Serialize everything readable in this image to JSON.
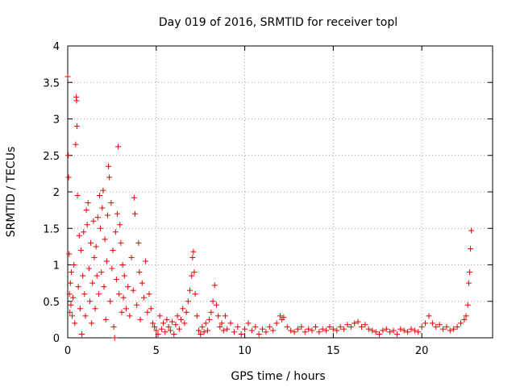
{
  "chart_data": {
    "type": "scatter",
    "title": "Day 019 of 2016, SRMTID for receiver topl",
    "xlabel": "GPS time / hours",
    "ylabel": "SRMTID / TECUs",
    "xlim": [
      0,
      24
    ],
    "ylim": [
      0,
      4
    ],
    "x_ticks": [
      0,
      5,
      10,
      15,
      20
    ],
    "y_ticks": [
      0,
      0.5,
      1,
      1.5,
      2,
      2.5,
      3,
      3.5,
      4
    ],
    "x_tick_labels": [
      "0",
      "5",
      "10",
      "15",
      "20"
    ],
    "y_tick_labels": [
      "0",
      "0.5",
      "1",
      "1.5",
      "2",
      "2.5",
      "3",
      "3.5",
      "4"
    ],
    "grid": true,
    "marker": "+",
    "color": "#e00000",
    "series": [
      {
        "name": "SRMTID",
        "points": [
          [
            0.0,
            3.58
          ],
          [
            0.03,
            2.5
          ],
          [
            0.05,
            2.2
          ],
          [
            0.08,
            1.15
          ],
          [
            0.1,
            0.6
          ],
          [
            0.12,
            0.35
          ],
          [
            0.15,
            0.75
          ],
          [
            0.18,
            0.45
          ],
          [
            0.2,
            0.9
          ],
          [
            0.25,
            0.3
          ],
          [
            0.3,
            0.55
          ],
          [
            0.35,
            1.0
          ],
          [
            0.4,
            0.2
          ],
          [
            0.45,
            2.65
          ],
          [
            0.48,
            3.3
          ],
          [
            0.5,
            3.25
          ],
          [
            0.52,
            2.9
          ],
          [
            0.55,
            1.95
          ],
          [
            0.6,
            0.7
          ],
          [
            0.65,
            1.4
          ],
          [
            0.7,
            0.4
          ],
          [
            0.75,
            1.2
          ],
          [
            0.8,
            0.05
          ],
          [
            0.85,
            0.85
          ],
          [
            0.9,
            1.45
          ],
          [
            0.95,
            0.6
          ],
          [
            1.0,
            0.3
          ],
          [
            1.05,
            1.75
          ],
          [
            1.1,
            1.55
          ],
          [
            1.15,
            1.85
          ],
          [
            1.2,
            0.95
          ],
          [
            1.25,
            0.5
          ],
          [
            1.3,
            1.3
          ],
          [
            1.35,
            0.2
          ],
          [
            1.4,
            0.75
          ],
          [
            1.45,
            1.6
          ],
          [
            1.5,
            1.1
          ],
          [
            1.55,
            0.4
          ],
          [
            1.6,
            1.25
          ],
          [
            1.65,
            0.85
          ],
          [
            1.7,
            1.65
          ],
          [
            1.75,
            0.6
          ],
          [
            1.8,
            1.95
          ],
          [
            1.85,
            1.5
          ],
          [
            1.9,
            0.9
          ],
          [
            1.95,
            1.78
          ],
          [
            2.0,
            2.02
          ],
          [
            2.05,
            0.7
          ],
          [
            2.1,
            1.35
          ],
          [
            2.15,
            0.25
          ],
          [
            2.2,
            1.05
          ],
          [
            2.25,
            1.68
          ],
          [
            2.3,
            2.35
          ],
          [
            2.35,
            2.2
          ],
          [
            2.4,
            0.5
          ],
          [
            2.45,
            1.85
          ],
          [
            2.5,
            0.95
          ],
          [
            2.55,
            1.2
          ],
          [
            2.6,
            0.15
          ],
          [
            2.65,
            0.0
          ],
          [
            2.7,
            1.45
          ],
          [
            2.75,
            0.8
          ],
          [
            2.8,
            1.7
          ],
          [
            2.85,
            2.62
          ],
          [
            2.9,
            0.6
          ],
          [
            2.95,
            1.55
          ],
          [
            3.0,
            1.3
          ],
          [
            3.05,
            0.35
          ],
          [
            3.1,
            1.0
          ],
          [
            3.15,
            0.55
          ],
          [
            3.2,
            0.85
          ],
          [
            3.3,
            0.4
          ],
          [
            3.4,
            0.7
          ],
          [
            3.5,
            0.3
          ],
          [
            3.6,
            1.1
          ],
          [
            3.7,
            0.65
          ],
          [
            3.75,
            1.92
          ],
          [
            3.8,
            1.7
          ],
          [
            3.9,
            0.45
          ],
          [
            4.0,
            1.3
          ],
          [
            4.05,
            0.9
          ],
          [
            4.1,
            0.25
          ],
          [
            4.2,
            0.75
          ],
          [
            4.3,
            0.55
          ],
          [
            4.4,
            1.05
          ],
          [
            4.5,
            0.35
          ],
          [
            4.6,
            0.6
          ],
          [
            4.7,
            0.4
          ],
          [
            4.8,
            0.2
          ],
          [
            4.9,
            0.15
          ],
          [
            5.0,
            0.1
          ],
          [
            5.1,
            0.05
          ],
          [
            5.2,
            0.3
          ],
          [
            5.3,
            0.12
          ],
          [
            5.4,
            0.2
          ],
          [
            5.5,
            0.08
          ],
          [
            5.6,
            0.25
          ],
          [
            5.7,
            0.15
          ],
          [
            5.8,
            0.1
          ],
          [
            5.9,
            0.22
          ],
          [
            6.0,
            0.05
          ],
          [
            6.1,
            0.18
          ],
          [
            6.2,
            0.3
          ],
          [
            6.3,
            0.12
          ],
          [
            6.4,
            0.25
          ],
          [
            6.5,
            0.4
          ],
          [
            6.6,
            0.2
          ],
          [
            6.7,
            0.35
          ],
          [
            6.8,
            0.5
          ],
          [
            6.9,
            0.65
          ],
          [
            7.0,
            0.85
          ],
          [
            7.05,
            1.1
          ],
          [
            7.1,
            1.18
          ],
          [
            7.15,
            0.9
          ],
          [
            7.2,
            0.6
          ],
          [
            7.3,
            0.3
          ],
          [
            7.4,
            0.1
          ],
          [
            7.5,
            0.05
          ],
          [
            7.6,
            0.15
          ],
          [
            7.7,
            0.08
          ],
          [
            7.8,
            0.2
          ],
          [
            7.9,
            0.1
          ],
          [
            8.0,
            0.25
          ],
          [
            8.1,
            0.35
          ],
          [
            8.2,
            0.5
          ],
          [
            8.3,
            0.72
          ],
          [
            8.4,
            0.45
          ],
          [
            8.5,
            0.3
          ],
          [
            8.6,
            0.15
          ],
          [
            8.7,
            0.2
          ],
          [
            8.8,
            0.1
          ],
          [
            8.9,
            0.3
          ],
          [
            9.0,
            0.12
          ],
          [
            9.2,
            0.2
          ],
          [
            9.4,
            0.08
          ],
          [
            9.6,
            0.15
          ],
          [
            9.8,
            0.05
          ],
          [
            10.0,
            0.12
          ],
          [
            10.2,
            0.2
          ],
          [
            10.4,
            0.1
          ],
          [
            10.6,
            0.15
          ],
          [
            10.8,
            0.05
          ],
          [
            11.0,
            0.12
          ],
          [
            11.2,
            0.08
          ],
          [
            11.4,
            0.15
          ],
          [
            11.6,
            0.1
          ],
          [
            11.8,
            0.2
          ],
          [
            12.0,
            0.3
          ],
          [
            12.1,
            0.25
          ],
          [
            12.2,
            0.28
          ],
          [
            12.4,
            0.15
          ],
          [
            12.6,
            0.1
          ],
          [
            12.8,
            0.08
          ],
          [
            13.0,
            0.12
          ],
          [
            13.2,
            0.15
          ],
          [
            13.4,
            0.08
          ],
          [
            13.6,
            0.12
          ],
          [
            13.8,
            0.1
          ],
          [
            14.0,
            0.15
          ],
          [
            14.2,
            0.08
          ],
          [
            14.4,
            0.12
          ],
          [
            14.6,
            0.1
          ],
          [
            14.8,
            0.15
          ],
          [
            15.0,
            0.12
          ],
          [
            15.2,
            0.1
          ],
          [
            15.4,
            0.15
          ],
          [
            15.6,
            0.12
          ],
          [
            15.8,
            0.18
          ],
          [
            16.0,
            0.15
          ],
          [
            16.2,
            0.2
          ],
          [
            16.4,
            0.22
          ],
          [
            16.6,
            0.15
          ],
          [
            16.8,
            0.18
          ],
          [
            17.0,
            0.12
          ],
          [
            17.2,
            0.1
          ],
          [
            17.4,
            0.08
          ],
          [
            17.6,
            0.05
          ],
          [
            17.8,
            0.1
          ],
          [
            18.0,
            0.12
          ],
          [
            18.2,
            0.08
          ],
          [
            18.4,
            0.1
          ],
          [
            18.6,
            0.05
          ],
          [
            18.8,
            0.12
          ],
          [
            19.0,
            0.1
          ],
          [
            19.2,
            0.08
          ],
          [
            19.4,
            0.12
          ],
          [
            19.6,
            0.1
          ],
          [
            19.8,
            0.08
          ],
          [
            20.0,
            0.15
          ],
          [
            20.2,
            0.2
          ],
          [
            20.4,
            0.3
          ],
          [
            20.6,
            0.2
          ],
          [
            20.8,
            0.15
          ],
          [
            21.0,
            0.18
          ],
          [
            21.2,
            0.12
          ],
          [
            21.4,
            0.15
          ],
          [
            21.6,
            0.1
          ],
          [
            21.8,
            0.12
          ],
          [
            22.0,
            0.15
          ],
          [
            22.2,
            0.2
          ],
          [
            22.4,
            0.25
          ],
          [
            22.5,
            0.3
          ],
          [
            22.6,
            0.45
          ],
          [
            22.65,
            0.75
          ],
          [
            22.7,
            0.9
          ],
          [
            22.75,
            1.22
          ],
          [
            22.8,
            1.47
          ]
        ]
      }
    ]
  }
}
